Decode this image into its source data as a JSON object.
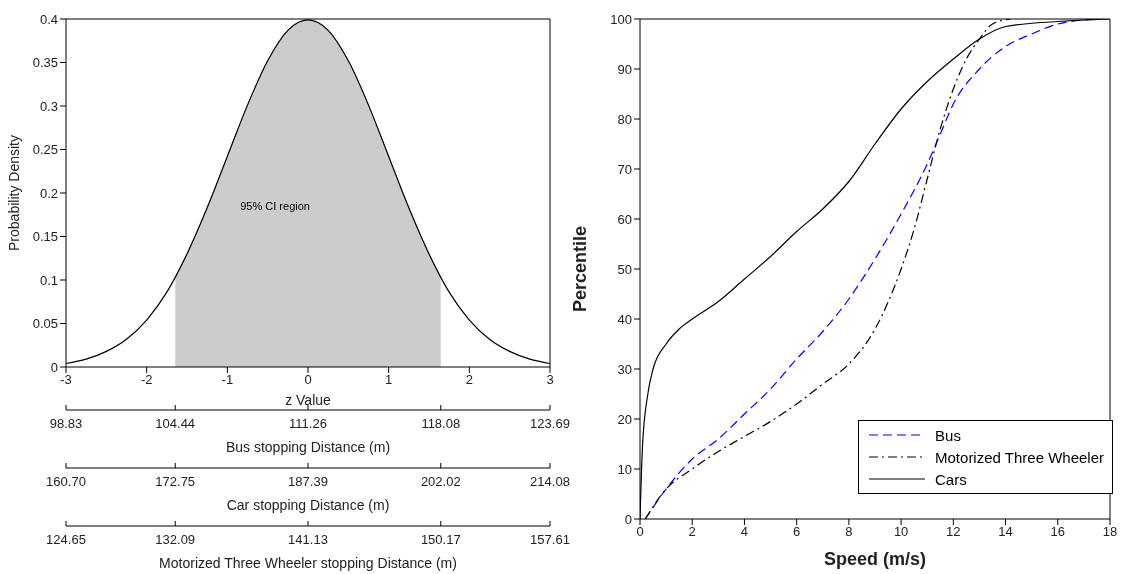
{
  "chart_data": [
    {
      "type": "line",
      "xlabel": "z Value",
      "ylabel": "Probability Density",
      "xlim": [
        -3,
        3
      ],
      "xticks": [
        -3,
        -2,
        -1,
        0,
        1,
        2,
        3
      ],
      "ylim": [
        0,
        0.4
      ],
      "yticks": [
        0,
        0.05,
        0.1,
        0.15,
        0.2,
        0.25,
        0.3,
        0.35,
        0.4
      ],
      "x2lim": [
        98.83,
        123.69
      ],
      "x2ticks": [
        98.83,
        104.44,
        111.26,
        118.08,
        123.69
      ],
      "x2label": "Bus stopping Distance (m)",
      "series": [
        {
          "type": "area",
          "color": "#cccccc",
          "x": [
            -1.645,
            -1.5,
            -1.25,
            -1,
            -0.75,
            -0.5,
            -0.25,
            0,
            0.25,
            0.5,
            0.75,
            1,
            1.25,
            1.5,
            1.645
          ],
          "values": [
            0.103,
            0.13,
            0.183,
            0.242,
            0.301,
            0.352,
            0.387,
            0.399,
            0.387,
            0.352,
            0.301,
            0.242,
            0.183,
            0.13,
            0.103
          ]
        },
        {
          "color": "#000000",
          "x": [
            -3,
            -2.75,
            -2.5,
            -2.25,
            -2,
            -1.75,
            -1.5,
            -1.25,
            -1,
            -0.75,
            -0.5,
            -0.25,
            0,
            0.25,
            0.5,
            0.75,
            1,
            1.25,
            1.5,
            1.75,
            2,
            2.25,
            2.5,
            2.75,
            3
          ],
          "values": [
            0.004,
            0.009,
            0.018,
            0.032,
            0.054,
            0.086,
            0.13,
            0.183,
            0.242,
            0.301,
            0.352,
            0.387,
            0.399,
            0.387,
            0.352,
            0.301,
            0.242,
            0.183,
            0.13,
            0.086,
            0.054,
            0.032,
            0.018,
            0.009,
            0.004
          ]
        }
      ],
      "annotations": [
        "95% CI region",
        "160.70",
        "172.75",
        "187.39",
        "202.02",
        "214.08",
        "Car stopping Distance (m)",
        "124.65",
        "132.09",
        "141.13",
        "150.17",
        "157.61",
        "Motorized Three Wheeler stopping Distance (m)"
      ]
    },
    {
      "type": "line",
      "xlabel": "Speed (m/s)",
      "ylabel": "Percentile",
      "xlim": [
        0,
        18
      ],
      "xticks": [
        0,
        2,
        4,
        6,
        8,
        10,
        12,
        14,
        16,
        18
      ],
      "ylim": [
        0,
        100
      ],
      "yticks": [
        0,
        10,
        20,
        30,
        40,
        50,
        60,
        70,
        80,
        90,
        100
      ],
      "legend": "bottom right",
      "series": [
        {
          "name": "Bus",
          "color": "#0000ff",
          "line_style": "dashed",
          "x": [
            0.2,
            1,
            2,
            3,
            4,
            5,
            6,
            7,
            8,
            9,
            10,
            11,
            11.5,
            12,
            13,
            14,
            15,
            16,
            17.5
          ],
          "values": [
            0,
            6,
            12,
            16,
            21,
            26,
            32,
            37.5,
            44,
            52,
            61,
            71,
            77,
            83,
            90,
            94.5,
            97,
            99,
            100
          ]
        },
        {
          "name": "Motorized Three Wheeler",
          "color": "#000000",
          "line_style": "dashdot",
          "x": [
            0.2,
            1,
            2,
            3,
            4,
            5,
            6,
            7,
            8,
            9,
            10,
            10.5,
            11,
            11.5,
            12,
            12.5,
            13,
            13.5,
            14.2
          ],
          "values": [
            0,
            6,
            10,
            13.5,
            16.5,
            19.5,
            23,
            27,
            31,
            38,
            50,
            58,
            68,
            78,
            86,
            92,
            96,
            99,
            100
          ]
        },
        {
          "name": "Cars",
          "color": "#000000",
          "line_style": "solid",
          "x": [
            0,
            0.1,
            0.3,
            0.5,
            1,
            1.5,
            2,
            3,
            4,
            5,
            6,
            7,
            8,
            9,
            10,
            11,
            12,
            13,
            14,
            16,
            18
          ],
          "values": [
            0,
            15,
            25,
            30,
            35,
            38,
            40,
            43.5,
            48,
            52.5,
            57.5,
            62,
            67.5,
            75,
            82,
            87.5,
            92,
            96,
            98.5,
            99.5,
            100
          ]
        }
      ]
    }
  ]
}
